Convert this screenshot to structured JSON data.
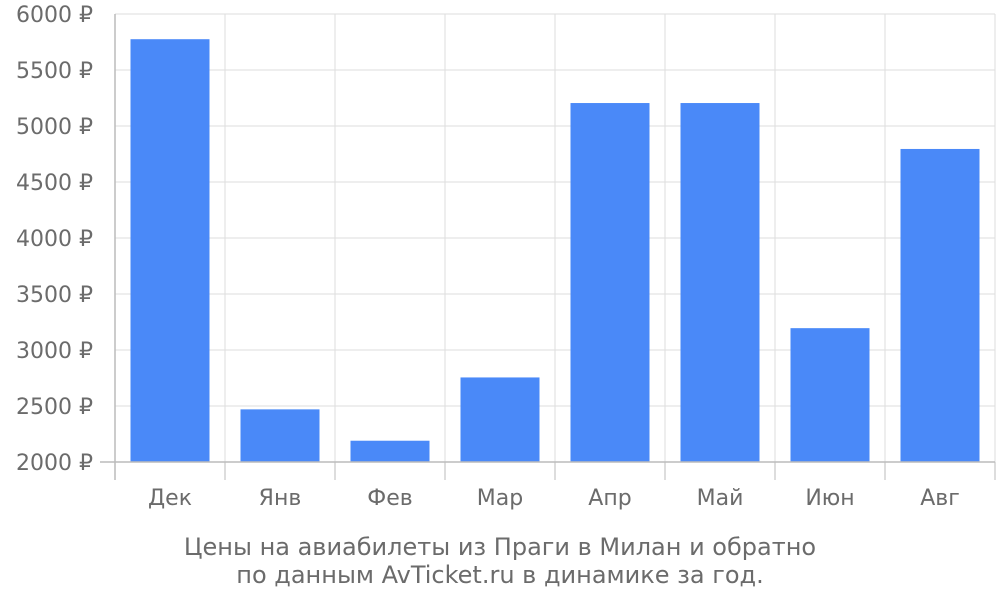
{
  "chart_data": {
    "type": "bar",
    "categories": [
      "Дек",
      "Янв",
      "Фев",
      "Мар",
      "Апр",
      "Май",
      "Июн",
      "Авг"
    ],
    "values": [
      5775,
      2470,
      2190,
      2755,
      5205,
      5205,
      3195,
      4795
    ],
    "ylim": [
      2000,
      6000
    ],
    "yticks": [
      2000,
      2500,
      3000,
      3500,
      4000,
      4500,
      5000,
      5500,
      6000
    ],
    "ytick_suffix": " ₽",
    "bar_color": "#4a89f8",
    "grid": true
  },
  "caption": {
    "line1": "Цены на авиабилеты из Праги в Милан и обратно",
    "line2": "по данным AvTicket.ru в динамике за год."
  },
  "colors": {
    "grid": "#dddddd",
    "axis": "#bbbbbb",
    "text": "#6b6b6b"
  }
}
